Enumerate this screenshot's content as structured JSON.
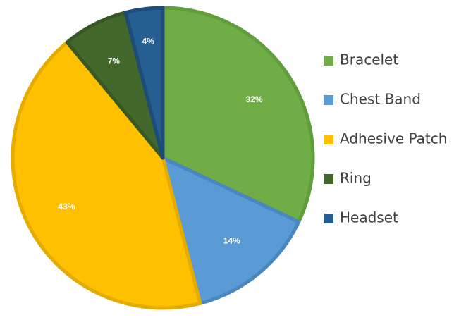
{
  "chart_data": {
    "type": "pie",
    "title": "",
    "categories": [
      "Bracelet",
      "Chest Band",
      "Adhesive Patch",
      "Ring",
      "Headset"
    ],
    "values": [
      32,
      14,
      43,
      7,
      4
    ],
    "labels": [
      "32%",
      "14%",
      "43%",
      "7%",
      "4%"
    ],
    "colors": [
      "#70AD47",
      "#5B9BD5",
      "#FFC000",
      "#43682B",
      "#255E91"
    ],
    "edge_colors": [
      "#5F9E3A",
      "#4A87C0",
      "#E5AC00",
      "#375823",
      "#1D4C78"
    ],
    "start_angle_deg": 0,
    "direction": "clockwise",
    "legend_position": "right"
  }
}
